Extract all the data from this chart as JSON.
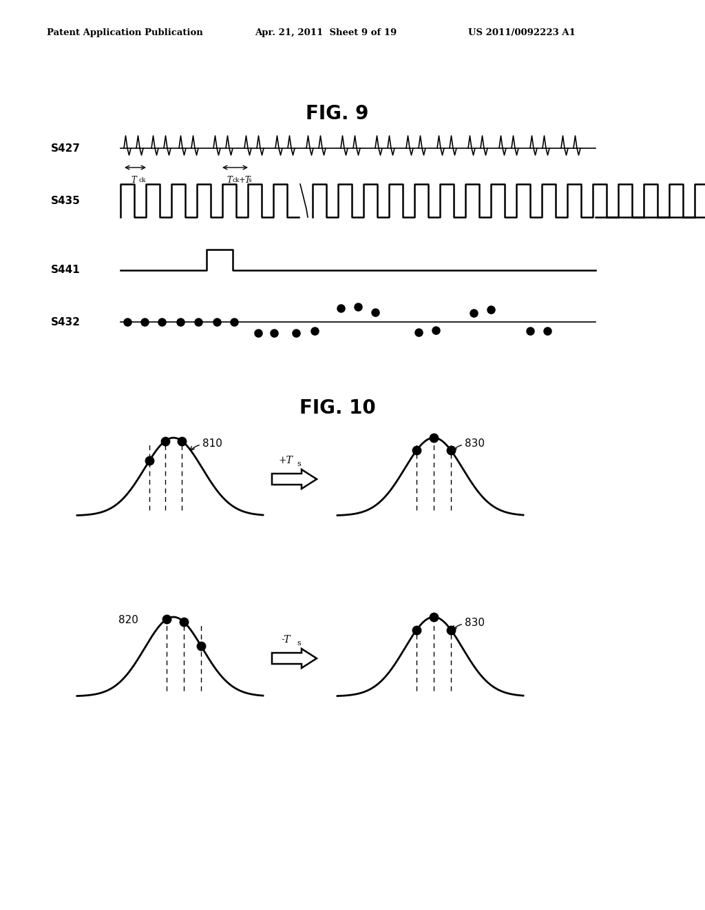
{
  "bg_color": "#ffffff",
  "header_left": "Patent Application Publication",
  "header_center": "Apr. 21, 2011  Sheet 9 of 19",
  "header_right": "US 2011/0092223 A1",
  "fig9_title": "FIG. 9",
  "fig10_title": "FIG. 10",
  "label_s427": "S427",
  "label_s435": "S435",
  "label_s441": "S441",
  "label_s432": "S432",
  "label_810": "810",
  "label_820": "820",
  "label_830_top": "830",
  "label_830_bot": "830"
}
